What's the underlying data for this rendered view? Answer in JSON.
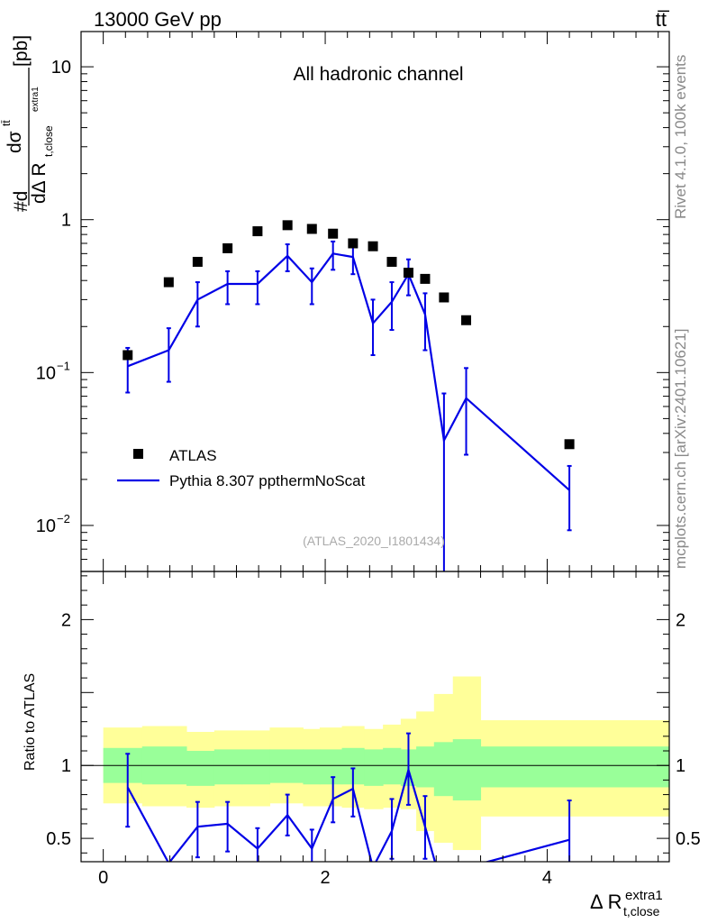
{
  "header": {
    "energy_label": "13000 GeV pp",
    "process_label": "tt̅"
  },
  "side_labels": {
    "rivet": "Rivet 4.1.0,  100k events",
    "mcplots": "mcplots.cern.ch [arXiv:2401.10621]"
  },
  "colors": {
    "data": "#000000",
    "mc": "#0000e6",
    "band_inner": "#99ff99",
    "band_outer": "#ffff99"
  },
  "chart_data": [
    {
      "type": "scatter",
      "panel": "main",
      "title": "All hadronic channel",
      "analysis_id": "(ATLAS_2020_I1801434)",
      "ylabel": "#d dσ^{tt̄} / dΔ R_{t,close}^{extra1} [pb]",
      "ylabel_parts": {
        "prefix": "#d",
        "num": "dσ",
        "num_sup": "tt̄",
        "den": "dΔ R",
        "den_sub": "t,close",
        "den_sup": "extra1",
        "unit": "[pb]"
      },
      "yscale": "log",
      "ylim": [
        0.005,
        17
      ],
      "xlim": [
        -0.2,
        5.1
      ],
      "yticks": [
        {
          "v": 10,
          "label": "10"
        },
        {
          "v": 1,
          "label": "1"
        },
        {
          "v": 0.1,
          "label": "10",
          "exp": "−1"
        },
        {
          "v": 0.01,
          "label": "10",
          "exp": "−2"
        }
      ],
      "legend": {
        "position": "bottom-left",
        "entries": [
          "ATLAS",
          "Pythia 8.307 ppthermNoScat"
        ]
      },
      "series": [
        {
          "name": "ATLAS",
          "style": "markers",
          "x": [
            0.22,
            0.59,
            0.85,
            1.12,
            1.39,
            1.66,
            1.88,
            2.07,
            2.25,
            2.43,
            2.6,
            2.75,
            2.9,
            3.07,
            3.27,
            4.2
          ],
          "y": [
            0.13,
            0.39,
            0.53,
            0.65,
            0.84,
            0.92,
            0.87,
            0.81,
            0.7,
            0.67,
            0.53,
            0.45,
            0.41,
            0.31,
            0.22,
            0.034
          ]
        },
        {
          "name": "Pythia 8.307 ppthermNoScat",
          "style": "line-errorbars",
          "x": [
            0.22,
            0.59,
            0.85,
            1.12,
            1.39,
            1.66,
            1.88,
            2.07,
            2.25,
            2.43,
            2.6,
            2.75,
            2.9,
            3.07,
            3.27,
            4.2
          ],
          "y": [
            0.11,
            0.14,
            0.3,
            0.38,
            0.38,
            0.58,
            0.39,
            0.6,
            0.57,
            0.21,
            0.29,
            0.44,
            0.24,
            0.036,
            0.068,
            0.017
          ],
          "err_lo": [
            0.074,
            0.087,
            0.2,
            0.28,
            0.28,
            0.46,
            0.28,
            0.47,
            0.44,
            0.13,
            0.19,
            0.32,
            0.14,
            0.003,
            0.029,
            0.0093
          ],
          "err_hi": [
            0.145,
            0.195,
            0.39,
            0.46,
            0.46,
            0.69,
            0.48,
            0.72,
            0.69,
            0.3,
            0.39,
            0.55,
            0.33,
            0.073,
            0.107,
            0.0245
          ],
          "segments": [
            [
              0,
              16
            ]
          ]
        }
      ]
    },
    {
      "type": "line",
      "panel": "ratio",
      "ylabel": "Ratio to ATLAS",
      "xlabel": "Δ R",
      "xlabel_sub": "t,close",
      "xlabel_sup": "extra1",
      "xlim": [
        -0.2,
        5.1
      ],
      "ylim": [
        0.34,
        2.33
      ],
      "xticks": [
        0,
        2,
        4
      ],
      "yticks": [
        0.5,
        1,
        2
      ],
      "reference_line": 1.0,
      "bands": {
        "edges": [
          0,
          0.35,
          0.75,
          1.0,
          1.25,
          1.5,
          1.8,
          1.95,
          2.15,
          2.35,
          2.52,
          2.68,
          2.82,
          2.98,
          3.15,
          3.4,
          5.1
        ],
        "inner_lo": [
          0.88,
          0.87,
          0.86,
          0.87,
          0.87,
          0.88,
          0.87,
          0.87,
          0.87,
          0.86,
          0.87,
          0.86,
          0.85,
          0.79,
          0.76,
          0.85
        ],
        "inner_hi": [
          1.12,
          1.13,
          1.1,
          1.11,
          1.11,
          1.11,
          1.11,
          1.11,
          1.12,
          1.11,
          1.12,
          1.11,
          1.13,
          1.16,
          1.18,
          1.13
        ],
        "outer_lo": [
          0.74,
          0.72,
          0.71,
          0.72,
          0.72,
          0.74,
          0.72,
          0.72,
          0.71,
          0.7,
          0.71,
          0.7,
          0.55,
          0.47,
          0.42,
          0.65
        ],
        "outer_hi": [
          1.26,
          1.27,
          1.23,
          1.24,
          1.24,
          1.26,
          1.25,
          1.26,
          1.27,
          1.25,
          1.28,
          1.32,
          1.37,
          1.49,
          1.61,
          1.31
        ]
      },
      "series": [
        {
          "name": "Pythia 8.307 ppthermNoScat / ATLAS",
          "x": [
            0.22,
            0.59,
            0.85,
            1.12,
            1.39,
            1.66,
            1.88,
            2.07,
            2.25,
            2.43,
            2.6,
            2.75,
            2.9,
            3.07,
            3.27,
            4.2
          ],
          "y": [
            0.85,
            0.33,
            0.58,
            0.6,
            0.43,
            0.66,
            0.43,
            0.77,
            0.84,
            0.3,
            0.55,
            0.97,
            0.58,
            0.12,
            0.3,
            0.49
          ],
          "err_lo": [
            0.58,
            null,
            0.37,
            0.41,
            0.3,
            0.52,
            0.31,
            0.61,
            0.65,
            null,
            0.36,
            0.73,
            0.36,
            null,
            null,
            0.27
          ],
          "err_hi": [
            1.08,
            null,
            0.75,
            0.75,
            0.57,
            0.8,
            0.56,
            0.92,
            0.98,
            null,
            0.77,
            1.22,
            0.79,
            null,
            null,
            0.76
          ],
          "segments": [
            [
              0,
              16
            ]
          ]
        }
      ]
    }
  ]
}
